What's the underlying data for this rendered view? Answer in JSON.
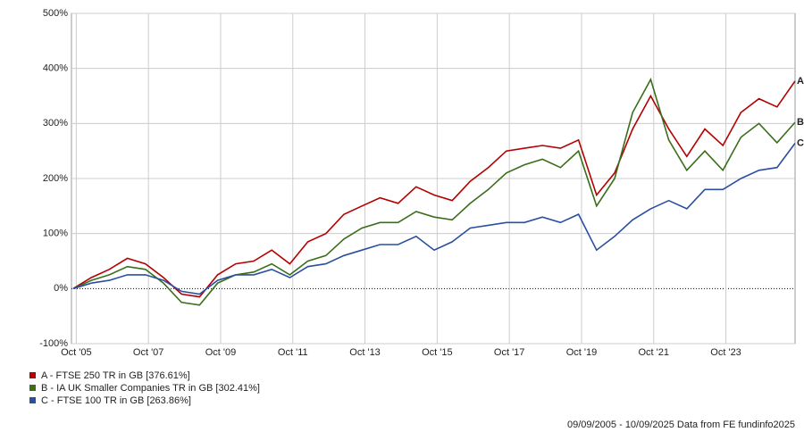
{
  "chart_data": {
    "type": "line",
    "x": [
      "2005-09",
      "2006-03",
      "2006-09",
      "2007-03",
      "2007-09",
      "2008-03",
      "2008-09",
      "2009-03",
      "2009-09",
      "2010-03",
      "2010-09",
      "2011-03",
      "2011-09",
      "2012-03",
      "2012-09",
      "2013-03",
      "2013-09",
      "2014-03",
      "2014-09",
      "2015-03",
      "2015-09",
      "2016-03",
      "2016-09",
      "2017-03",
      "2017-09",
      "2018-03",
      "2018-09",
      "2019-03",
      "2019-09",
      "2020-03",
      "2020-09",
      "2021-03",
      "2021-09",
      "2022-03",
      "2022-09",
      "2023-03",
      "2023-09",
      "2024-03",
      "2024-09",
      "2025-03",
      "2025-09"
    ],
    "series": [
      {
        "name": "A - FTSE 250 TR in GB [376.61%]",
        "label": "A",
        "color": "#b30000",
        "values": [
          0,
          20,
          35,
          55,
          45,
          20,
          -10,
          -15,
          25,
          45,
          50,
          70,
          45,
          85,
          100,
          135,
          150,
          165,
          155,
          185,
          170,
          160,
          195,
          220,
          250,
          255,
          260,
          255,
          270,
          170,
          210,
          290,
          350,
          290,
          240,
          290,
          260,
          320,
          345,
          330,
          377
        ]
      },
      {
        "name": "B - IA UK Smaller Companies TR in GB [302.41%]",
        "label": "B",
        "color": "#3a6e1a",
        "values": [
          0,
          15,
          25,
          40,
          35,
          10,
          -25,
          -30,
          10,
          25,
          30,
          45,
          25,
          50,
          60,
          90,
          110,
          120,
          120,
          140,
          130,
          125,
          155,
          180,
          210,
          225,
          235,
          220,
          250,
          150,
          200,
          320,
          380,
          270,
          215,
          250,
          215,
          275,
          300,
          265,
          302
        ]
      },
      {
        "name": "C - FTSE 100 TR in GB [263.86%]",
        "label": "C",
        "color": "#2a4fa0",
        "values": [
          0,
          10,
          15,
          25,
          25,
          15,
          -5,
          -10,
          15,
          25,
          25,
          35,
          20,
          40,
          45,
          60,
          70,
          80,
          80,
          95,
          70,
          85,
          110,
          115,
          120,
          120,
          130,
          120,
          135,
          70,
          95,
          125,
          145,
          160,
          145,
          180,
          180,
          200,
          215,
          220,
          264
        ]
      }
    ],
    "xlim": [
      "2005-09",
      "2025-09"
    ],
    "xticks": [
      {
        "value": "2005-10",
        "label": "Oct '05"
      },
      {
        "value": "2007-10",
        "label": "Oct '07"
      },
      {
        "value": "2009-10",
        "label": "Oct '09"
      },
      {
        "value": "2011-10",
        "label": "Oct '11"
      },
      {
        "value": "2013-10",
        "label": "Oct '13"
      },
      {
        "value": "2015-10",
        "label": "Oct '15"
      },
      {
        "value": "2017-10",
        "label": "Oct '17"
      },
      {
        "value": "2019-10",
        "label": "Oct '19"
      },
      {
        "value": "2021-10",
        "label": "Oct '21"
      },
      {
        "value": "2023-10",
        "label": "Oct '23"
      }
    ],
    "ylim": [
      -100,
      500
    ],
    "yticks": [
      {
        "value": -100,
        "label": "-100%"
      },
      {
        "value": 0,
        "label": "0%"
      },
      {
        "value": 100,
        "label": "100%"
      },
      {
        "value": 200,
        "label": "200%"
      },
      {
        "value": 300,
        "label": "300%"
      },
      {
        "value": 400,
        "label": "400%"
      },
      {
        "value": 500,
        "label": "500%"
      }
    ],
    "grid": true,
    "footnote": "09/09/2005 - 10/09/2025 Data from FE fundinfo2025"
  }
}
